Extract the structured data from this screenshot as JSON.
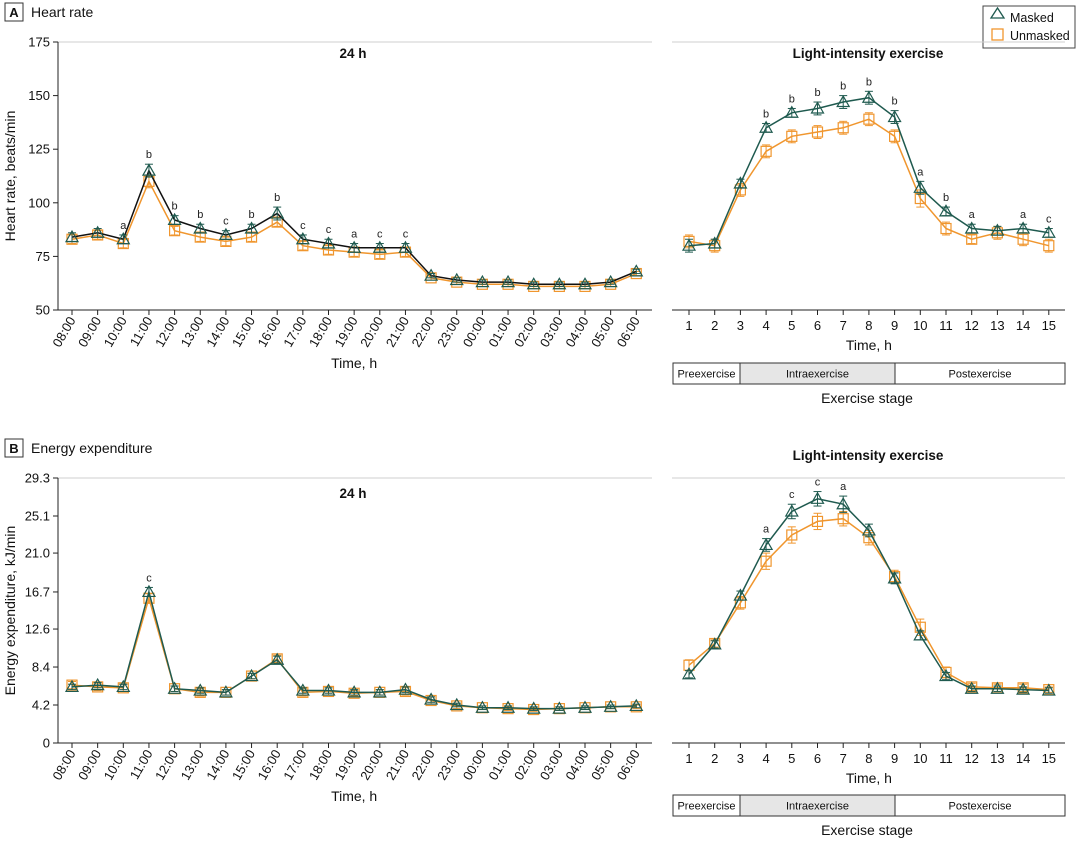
{
  "colors": {
    "masked": "#1f5a4f",
    "unmasked": "#f0962e",
    "hr_masked_24h_line": "#111111",
    "stage_box": "#e6e6e6"
  },
  "legend": {
    "masked": "Masked",
    "unmasked": "Unmasked"
  },
  "panels": {
    "A": {
      "letter": "A",
      "title": "Heart rate"
    },
    "B": {
      "letter": "B",
      "title": "Energy expenditure"
    }
  },
  "exercise_stage": {
    "labels": [
      "Preexercise",
      "Intraexercise",
      "Postexercise"
    ],
    "axis_label": "Exercise stage"
  },
  "chart_data": [
    {
      "id": "A-24h",
      "type": "line",
      "title": "24 h",
      "xlabel": "Time, h",
      "ylabel": "Heart rate, beats/min",
      "ylim": [
        50,
        175
      ],
      "yticks": [
        50,
        75,
        100,
        125,
        150,
        175
      ],
      "categories": [
        "08:00",
        "09:00",
        "10:00",
        "11:00",
        "12:00",
        "13:00",
        "14:00",
        "15:00",
        "16:00",
        "17:00",
        "18:00",
        "19:00",
        "20:00",
        "21:00",
        "22:00",
        "23:00",
        "00:00",
        "01:00",
        "02:00",
        "03:00",
        "04:00",
        "05:00",
        "06:00"
      ],
      "series": [
        {
          "name": "Masked",
          "values": [
            84,
            86,
            83,
            115,
            92,
            88,
            85,
            88,
            95,
            83,
            81,
            79,
            79,
            79,
            66,
            64,
            63,
            63,
            62,
            62,
            62,
            63,
            68
          ],
          "errors": [
            2,
            2,
            2,
            3,
            2,
            2,
            2,
            2,
            3,
            2,
            2,
            2,
            2,
            2,
            1,
            1,
            1,
            1,
            1,
            1,
            1,
            1,
            1
          ]
        },
        {
          "name": "Unmasked",
          "values": [
            83,
            85,
            81,
            110,
            87,
            84,
            82,
            84,
            91,
            80,
            78,
            77,
            76,
            77,
            65,
            63,
            62,
            62,
            61,
            61,
            61,
            62,
            67
          ],
          "errors": [
            2,
            2,
            2,
            3,
            2,
            2,
            2,
            2,
            2,
            2,
            2,
            2,
            2,
            2,
            1,
            1,
            1,
            1,
            1,
            1,
            1,
            1,
            1
          ]
        }
      ],
      "significance": [
        "",
        "",
        "a",
        "b",
        "b",
        "b",
        "c",
        "b",
        "b",
        "c",
        "c",
        "a",
        "c",
        "c",
        "",
        "",
        "",
        "",
        "",
        "",
        "",
        "",
        ""
      ]
    },
    {
      "id": "A-exercise",
      "type": "line",
      "title": "Light-intensity exercise",
      "xlabel": "Time, h",
      "ylim": [
        50,
        175
      ],
      "categories": [
        "1",
        "2",
        "3",
        "4",
        "5",
        "6",
        "7",
        "8",
        "9",
        "10",
        "11",
        "12",
        "13",
        "14",
        "15"
      ],
      "series": [
        {
          "name": "Masked",
          "values": [
            80,
            81,
            109,
            135,
            142,
            144,
            147,
            149,
            140,
            107,
            96,
            88,
            87,
            88,
            86
          ],
          "errors": [
            3,
            2,
            2,
            2,
            2,
            3,
            3,
            3,
            3,
            3,
            2,
            2,
            2,
            2,
            2
          ]
        },
        {
          "name": "Unmasked",
          "values": [
            82,
            80,
            106,
            124,
            131,
            133,
            135,
            139,
            131,
            102,
            88,
            83,
            86,
            83,
            80
          ],
          "errors": [
            3,
            3,
            3,
            3,
            3,
            3,
            3,
            3,
            3,
            4,
            3,
            2,
            3,
            3,
            3
          ]
        }
      ],
      "significance": [
        "",
        "",
        "",
        "b",
        "b",
        "b",
        "b",
        "b",
        "b",
        "a",
        "b",
        "a",
        "",
        "a",
        "c"
      ]
    },
    {
      "id": "B-24h",
      "type": "line",
      "title": "24 h",
      "xlabel": "Time, h",
      "ylabel": "Energy expenditure, kJ/min",
      "ylim": [
        0,
        29.3
      ],
      "yticks": [
        0,
        4.2,
        8.4,
        12.6,
        16.7,
        21.0,
        25.1,
        29.3
      ],
      "categories": [
        "08:00",
        "09:00",
        "10:00",
        "11:00",
        "12:00",
        "13:00",
        "14:00",
        "15:00",
        "16:00",
        "17:00",
        "18:00",
        "19:00",
        "20:00",
        "21:00",
        "22:00",
        "23:00",
        "00:00",
        "01:00",
        "02:00",
        "03:00",
        "04:00",
        "05:00",
        "06:00"
      ],
      "series": [
        {
          "name": "Masked",
          "values": [
            6.2,
            6.4,
            6.2,
            16.7,
            6.0,
            5.8,
            5.6,
            7.4,
            9.2,
            5.8,
            5.8,
            5.6,
            5.6,
            5.9,
            4.8,
            4.2,
            3.9,
            3.9,
            3.8,
            3.8,
            3.9,
            4.0,
            4.1
          ],
          "errors": [
            0.3,
            0.3,
            0.3,
            0.5,
            0.3,
            0.3,
            0.3,
            0.3,
            0.4,
            0.3,
            0.3,
            0.3,
            0.3,
            0.3,
            0.3,
            0.2,
            0.2,
            0.2,
            0.2,
            0.2,
            0.2,
            0.2,
            0.2
          ]
        },
        {
          "name": "Unmasked",
          "values": [
            6.4,
            6.2,
            6.1,
            16.0,
            6.0,
            5.6,
            5.6,
            7.4,
            9.3,
            5.6,
            5.7,
            5.5,
            5.6,
            5.7,
            4.7,
            4.1,
            3.9,
            3.8,
            3.7,
            3.8,
            3.9,
            4.0,
            4.0
          ],
          "errors": [
            0.4,
            0.4,
            0.4,
            0.5,
            0.3,
            0.4,
            0.3,
            0.3,
            0.4,
            0.4,
            0.4,
            0.3,
            0.3,
            0.4,
            0.4,
            0.3,
            0.2,
            0.2,
            0.2,
            0.2,
            0.2,
            0.2,
            0.2
          ]
        }
      ],
      "significance": [
        "",
        "",
        "",
        "c",
        "",
        "",
        "",
        "",
        "",
        "",
        "",
        "",
        "",
        "",
        "",
        "",
        "",
        "",
        "",
        "",
        "",
        "",
        ""
      ]
    },
    {
      "id": "B-exercise",
      "type": "line",
      "title": "Light-intensity exercise",
      "xlabel": "Time, h",
      "ylim": [
        0,
        29.3
      ],
      "categories": [
        "1",
        "2",
        "3",
        "4",
        "5",
        "6",
        "7",
        "8",
        "9",
        "10",
        "11",
        "12",
        "13",
        "14",
        "15"
      ],
      "series": [
        {
          "name": "Masked",
          "values": [
            7.6,
            10.9,
            16.3,
            21.9,
            25.6,
            27.0,
            26.4,
            23.5,
            18.2,
            11.9,
            7.4,
            6.0,
            6.0,
            5.9,
            5.8
          ],
          "errors": [
            0.4,
            0.4,
            0.5,
            0.7,
            0.8,
            0.8,
            0.9,
            0.7,
            0.6,
            0.5,
            0.4,
            0.3,
            0.3,
            0.3,
            0.3
          ]
        },
        {
          "name": "Unmasked",
          "values": [
            8.6,
            11.0,
            15.5,
            20.1,
            23.0,
            24.5,
            24.8,
            22.7,
            18.4,
            12.8,
            7.8,
            6.2,
            6.1,
            6.1,
            5.9
          ],
          "errors": [
            0.6,
            0.4,
            0.7,
            0.9,
            0.9,
            0.9,
            0.8,
            0.8,
            0.7,
            0.9,
            0.6,
            0.4,
            0.4,
            0.4,
            0.3
          ]
        }
      ],
      "significance": [
        "",
        "",
        "",
        "a",
        "c",
        "c",
        "a",
        "",
        "",
        "",
        "",
        "",
        "",
        "",
        ""
      ]
    }
  ]
}
